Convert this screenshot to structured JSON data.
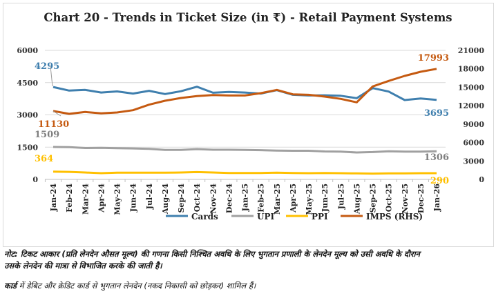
{
  "chart_data": {
    "type": "line",
    "title": "Chart 20 - Trends in Ticket Size (in ₹) - Retail Payment Systems",
    "categories": [
      "Jan-24",
      "Feb-24",
      "Mar-24",
      "Apr-24",
      "May-24",
      "Jun-24",
      "Jul-24",
      "Aug-24",
      "Sep-24",
      "Oct-24",
      "Nov-24",
      "Dec-24",
      "Jan-25",
      "Feb-25",
      "Mar-25",
      "Apr-25",
      "May-25",
      "Jun-25",
      "Jul-25",
      "Aug-25",
      "Sep-25",
      "Oct-25",
      "Nov-25",
      "Dec-25",
      "Jan-26"
    ],
    "y_left": {
      "range": [
        0,
        6000
      ],
      "ticks": [
        "0",
        "1500",
        "3000",
        "4500",
        "6000"
      ]
    },
    "y_right": {
      "range": [
        0,
        21000
      ],
      "ticks": [
        "0",
        "3000",
        "6000",
        "9000",
        "12000",
        "15000",
        "18000",
        "21000"
      ]
    },
    "grid": true,
    "legend_position": "bottom",
    "series": [
      {
        "name": "Cards",
        "axis": "left",
        "color": "#3f7fae",
        "values": [
          4295,
          4130,
          4160,
          4040,
          4090,
          3990,
          4120,
          3970,
          4100,
          4310,
          4030,
          4070,
          4040,
          3990,
          4150,
          3935,
          3900,
          3910,
          3890,
          3775,
          4245,
          4085,
          3690,
          3763,
          3695
        ],
        "labels": {
          "first": "4295",
          "last": "3695"
        }
      },
      {
        "name": "UPI",
        "axis": "left",
        "color": "#a0a0a0",
        "values": [
          1509,
          1500,
          1460,
          1470,
          1450,
          1440,
          1420,
          1370,
          1370,
          1410,
          1380,
          1380,
          1370,
          1360,
          1340,
          1330,
          1330,
          1300,
          1290,
          1250,
          1270,
          1310,
          1290,
          1290,
          1306
        ],
        "labels": {
          "first": "1509",
          "last": "1306"
        }
      },
      {
        "name": "PPI",
        "axis": "left",
        "color": "#ffc000",
        "values": [
          364,
          350,
          320,
          290,
          310,
          310,
          310,
          310,
          320,
          340,
          320,
          300,
          300,
          300,
          310,
          300,
          290,
          300,
          290,
          280,
          270,
          280,
          280,
          290,
          290
        ],
        "labels": {
          "first": "364",
          "last": "290"
        }
      },
      {
        "name": "IMPS (RHS)",
        "axis": "right",
        "color": "#c55a11",
        "values": [
          11130,
          10670,
          10970,
          10745,
          10890,
          11265,
          12165,
          12800,
          13250,
          13550,
          13730,
          13660,
          13660,
          14040,
          14560,
          13850,
          13770,
          13475,
          13100,
          12540,
          15125,
          16020,
          16845,
          17520,
          17993
        ],
        "labels": {
          "first": "11130",
          "last": "17993"
        }
      }
    ]
  },
  "notes": {
    "line1": "नोट: टिकट आकार (प्रति लेनदेन औसत मूल्य) की गणना किसी निश्चित अवधि के लिए भुगतान प्रणाली के लेनदेन मूल्य को उसी अवधि के दौरान",
    "line2": "उसके लेनदेन की मात्रा से विभाजित करके की जाती है।",
    "line3_bold": "कार्ड",
    "line3_rest": " में डेबिट और क्रेडिट कार्ड से भुगतान लेनदेन (नकद निकासी को छोड़कर) शामिल हैं।"
  }
}
